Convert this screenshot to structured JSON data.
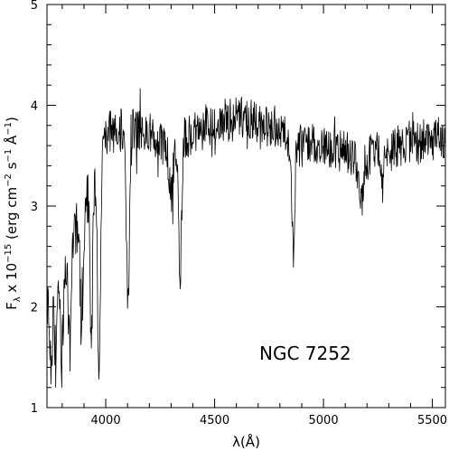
{
  "chart_data": {
    "type": "line",
    "title": "",
    "annotation": "NGC 7252",
    "xlabel": "λ(Å)",
    "ylabel": {
      "prefix": "F",
      "sub": "λ",
      "mid": " x 10",
      "exp": "−15",
      "unit_open": " (erg cm",
      "unit_exp1": "−2",
      "unit_s": " s",
      "unit_exp2": "−1",
      "unit_A": " Å",
      "unit_exp3": "−1",
      "unit_close": ")"
    },
    "xlim": [
      3730,
      5560
    ],
    "ylim": [
      1,
      5
    ],
    "x_ticks": [
      4000,
      4500,
      5000,
      5500
    ],
    "x_tick_labels": [
      "4000",
      "4500",
      "5000",
      "5500"
    ],
    "y_ticks": [
      1,
      2,
      3,
      4,
      5
    ],
    "y_tick_labels": [
      "1",
      "2",
      "3",
      "4",
      "5"
    ],
    "grid": false,
    "line_color": "#000000",
    "continuum": [
      [
        3730,
        2.1
      ],
      [
        3760,
        2.25
      ],
      [
        3800,
        2.45
      ],
      [
        3850,
        2.7
      ],
      [
        3900,
        2.95
      ],
      [
        3950,
        3.2
      ],
      [
        3980,
        3.45
      ],
      [
        4000,
        3.7
      ],
      [
        4050,
        3.78
      ],
      [
        4100,
        3.72
      ],
      [
        4150,
        3.78
      ],
      [
        4200,
        3.72
      ],
      [
        4250,
        3.62
      ],
      [
        4300,
        3.58
      ],
      [
        4350,
        3.66
      ],
      [
        4400,
        3.72
      ],
      [
        4450,
        3.78
      ],
      [
        4500,
        3.82
      ],
      [
        4550,
        3.85
      ],
      [
        4600,
        3.87
      ],
      [
        4650,
        3.86
      ],
      [
        4700,
        3.82
      ],
      [
        4750,
        3.8
      ],
      [
        4800,
        3.78
      ],
      [
        4830,
        3.72
      ],
      [
        4850,
        3.58
      ],
      [
        4900,
        3.6
      ],
      [
        4950,
        3.62
      ],
      [
        5000,
        3.6
      ],
      [
        5050,
        3.58
      ],
      [
        5100,
        3.55
      ],
      [
        5150,
        3.5
      ],
      [
        5200,
        3.48
      ],
      [
        5250,
        3.52
      ],
      [
        5300,
        3.55
      ],
      [
        5350,
        3.6
      ],
      [
        5400,
        3.63
      ],
      [
        5450,
        3.65
      ],
      [
        5500,
        3.66
      ],
      [
        5560,
        3.66
      ]
    ],
    "absorption_features": [
      {
        "center": 3750,
        "depth": 0.8,
        "width": 6
      },
      {
        "center": 3771,
        "depth": 0.8,
        "width": 6
      },
      {
        "center": 3798,
        "depth": 0.9,
        "width": 6
      },
      {
        "center": 3835,
        "depth": 1.0,
        "width": 7
      },
      {
        "center": 3889,
        "depth": 1.1,
        "width": 7
      },
      {
        "center": 3934,
        "depth": 1.55,
        "width": 5
      },
      {
        "center": 3969,
        "depth": 2.3,
        "width": 6
      },
      {
        "center": 4102,
        "depth": 1.65,
        "width": 7
      },
      {
        "center": 4300,
        "depth": 0.45,
        "width": 10
      },
      {
        "center": 4341,
        "depth": 1.35,
        "width": 7
      },
      {
        "center": 4861,
        "depth": 1.05,
        "width": 6
      },
      {
        "center": 5170,
        "depth": 0.5,
        "width": 10
      },
      {
        "center": 5270,
        "depth": 0.3,
        "width": 8
      }
    ],
    "noise_amplitude": 0.22,
    "sample_step": 2
  }
}
